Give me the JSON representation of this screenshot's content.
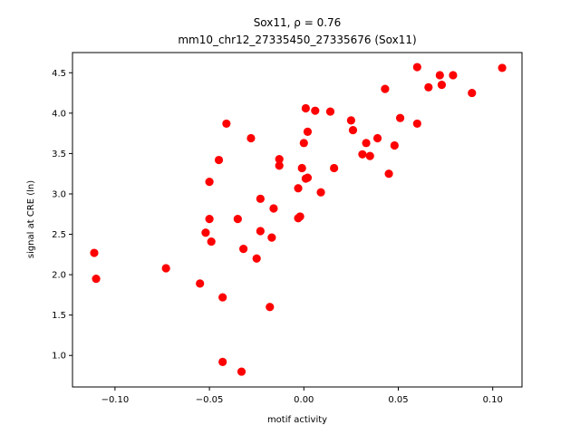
{
  "chart_data": {
    "type": "scatter",
    "title_line1": "Sox11, ρ = 0.76",
    "title_line2": "mm10_chr12_27335450_27335676 (Sox11)",
    "xlabel": "motif activity",
    "ylabel": "signal at CRE (ln)",
    "xlim": [
      -0.1225,
      0.1155
    ],
    "ylim": [
      0.61,
      4.75
    ],
    "xticks": [
      -0.1,
      -0.05,
      0.0,
      0.05,
      0.1
    ],
    "xtick_labels": [
      "−0.10",
      "−0.05",
      "0.00",
      "0.05",
      "0.10"
    ],
    "yticks": [
      1.0,
      1.5,
      2.0,
      2.5,
      3.0,
      3.5,
      4.0,
      4.5
    ],
    "ytick_labels": [
      "1.0",
      "1.5",
      "2.0",
      "2.5",
      "3.0",
      "3.5",
      "4.0",
      "4.5"
    ],
    "grid": false,
    "marker_color": "#ff0000",
    "points": [
      {
        "x": -0.111,
        "y": 2.27
      },
      {
        "x": -0.11,
        "y": 1.95
      },
      {
        "x": -0.073,
        "y": 2.08
      },
      {
        "x": -0.055,
        "y": 1.89
      },
      {
        "x": -0.052,
        "y": 2.52
      },
      {
        "x": -0.05,
        "y": 3.15
      },
      {
        "x": -0.05,
        "y": 2.69
      },
      {
        "x": -0.049,
        "y": 2.41
      },
      {
        "x": -0.045,
        "y": 3.42
      },
      {
        "x": -0.043,
        "y": 1.72
      },
      {
        "x": -0.043,
        "y": 0.92
      },
      {
        "x": -0.041,
        "y": 3.87
      },
      {
        "x": -0.035,
        "y": 2.69
      },
      {
        "x": -0.033,
        "y": 0.8
      },
      {
        "x": -0.032,
        "y": 2.32
      },
      {
        "x": -0.028,
        "y": 3.69
      },
      {
        "x": -0.025,
        "y": 2.2
      },
      {
        "x": -0.023,
        "y": 2.94
      },
      {
        "x": -0.023,
        "y": 2.54
      },
      {
        "x": -0.018,
        "y": 1.6
      },
      {
        "x": -0.017,
        "y": 2.46
      },
      {
        "x": -0.016,
        "y": 2.82
      },
      {
        "x": -0.013,
        "y": 3.43
      },
      {
        "x": -0.013,
        "y": 3.35
      },
      {
        "x": -0.003,
        "y": 3.07
      },
      {
        "x": -0.003,
        "y": 2.7
      },
      {
        "x": -0.002,
        "y": 2.72
      },
      {
        "x": -0.001,
        "y": 3.32
      },
      {
        "x": 0.0,
        "y": 3.63
      },
      {
        "x": 0.001,
        "y": 4.06
      },
      {
        "x": 0.001,
        "y": 3.19
      },
      {
        "x": 0.002,
        "y": 3.77
      },
      {
        "x": 0.002,
        "y": 3.2
      },
      {
        "x": 0.006,
        "y": 4.03
      },
      {
        "x": 0.009,
        "y": 3.02
      },
      {
        "x": 0.014,
        "y": 4.02
      },
      {
        "x": 0.016,
        "y": 3.32
      },
      {
        "x": 0.025,
        "y": 3.91
      },
      {
        "x": 0.026,
        "y": 3.79
      },
      {
        "x": 0.031,
        "y": 3.49
      },
      {
        "x": 0.033,
        "y": 3.63
      },
      {
        "x": 0.035,
        "y": 3.47
      },
      {
        "x": 0.039,
        "y": 3.69
      },
      {
        "x": 0.043,
        "y": 4.3
      },
      {
        "x": 0.045,
        "y": 3.25
      },
      {
        "x": 0.048,
        "y": 3.6
      },
      {
        "x": 0.051,
        "y": 3.94
      },
      {
        "x": 0.06,
        "y": 4.57
      },
      {
        "x": 0.06,
        "y": 3.87
      },
      {
        "x": 0.066,
        "y": 4.32
      },
      {
        "x": 0.072,
        "y": 4.47
      },
      {
        "x": 0.073,
        "y": 4.35
      },
      {
        "x": 0.079,
        "y": 4.47
      },
      {
        "x": 0.089,
        "y": 4.25
      },
      {
        "x": 0.105,
        "y": 4.56
      }
    ]
  }
}
